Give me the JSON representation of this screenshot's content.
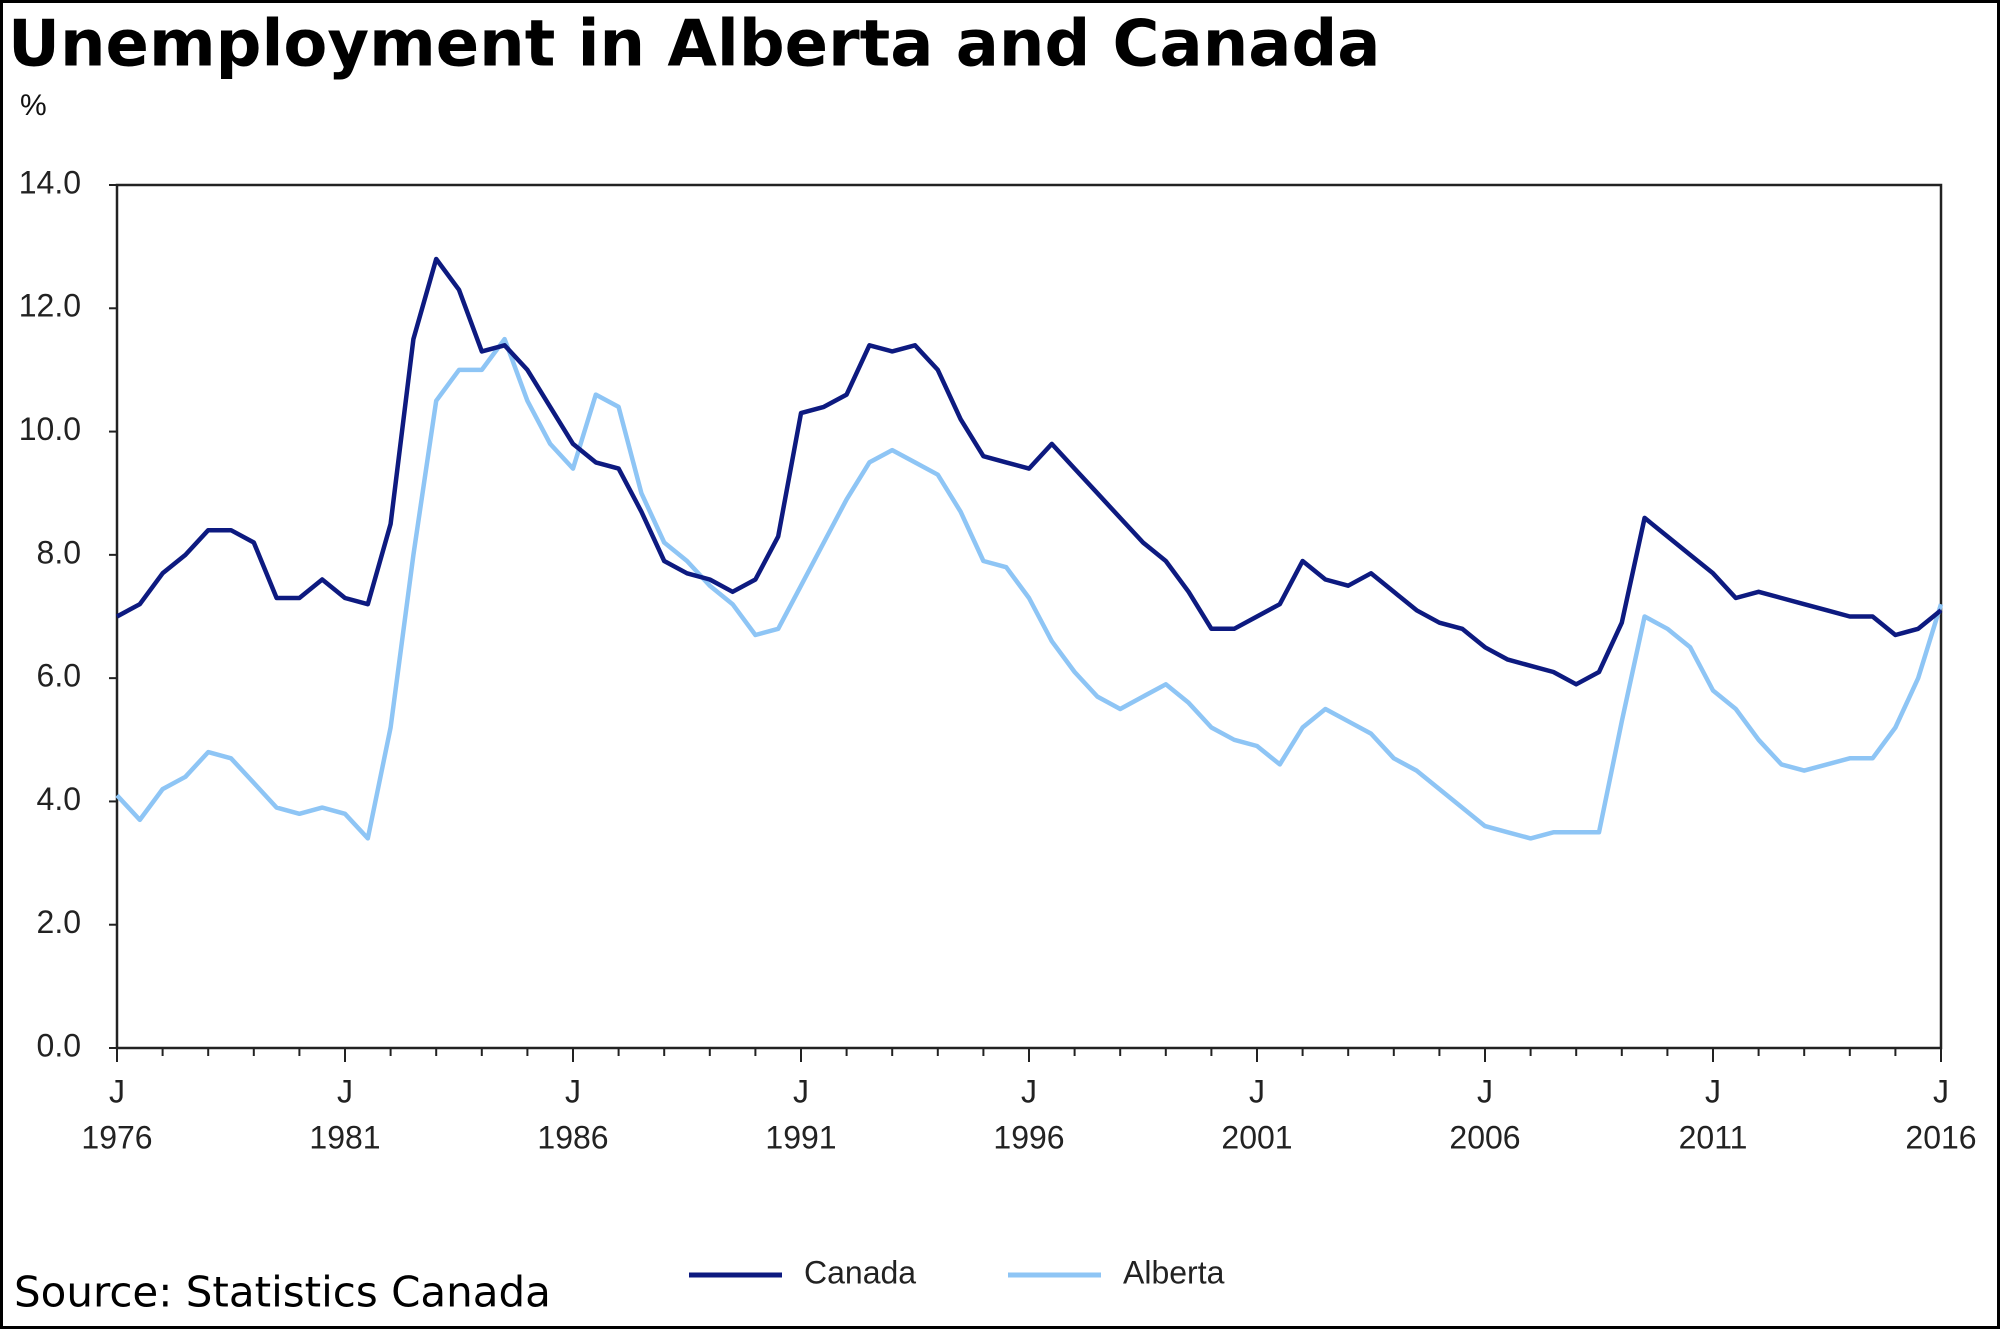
{
  "chart_data": {
    "type": "line",
    "title": "Unemployment in Alberta and Canada",
    "y_label": "%",
    "source": "Source: Statistics Canada",
    "xtick_month": "J",
    "x": [
      1976,
      1976.5,
      1977,
      1977.5,
      1978,
      1978.5,
      1979,
      1979.5,
      1980,
      1980.5,
      1981,
      1981.5,
      1982,
      1982.5,
      1983,
      1983.5,
      1984,
      1984.5,
      1985,
      1985.5,
      1986,
      1986.5,
      1987,
      1987.5,
      1988,
      1988.5,
      1989,
      1989.5,
      1990,
      1990.5,
      1991,
      1991.5,
      1992,
      1992.5,
      1993,
      1993.5,
      1994,
      1994.5,
      1995,
      1995.5,
      1996,
      1996.5,
      1997,
      1997.5,
      1998,
      1998.5,
      1999,
      1999.5,
      2000,
      2000.5,
      2001,
      2001.5,
      2002,
      2002.5,
      2003,
      2003.5,
      2004,
      2004.5,
      2005,
      2005.5,
      2006,
      2006.5,
      2007,
      2007.5,
      2008,
      2008.5,
      2009,
      2009.5,
      2010,
      2010.5,
      2011,
      2011.5,
      2012,
      2012.5,
      2013,
      2013.5,
      2014,
      2014.5,
      2015,
      2015.5,
      2016
    ],
    "series": [
      {
        "name": "Canada",
        "color": "#0d1a80",
        "values": [
          7.0,
          7.2,
          7.7,
          8.0,
          8.4,
          8.4,
          8.2,
          7.3,
          7.3,
          7.6,
          7.3,
          7.2,
          8.5,
          11.5,
          12.8,
          12.3,
          11.3,
          11.4,
          11.0,
          10.4,
          9.8,
          9.5,
          9.4,
          8.7,
          7.9,
          7.7,
          7.6,
          7.4,
          7.6,
          8.3,
          10.3,
          10.4,
          10.6,
          11.4,
          11.3,
          11.4,
          11.0,
          10.2,
          9.6,
          9.5,
          9.4,
          9.8,
          9.4,
          9.0,
          8.6,
          8.2,
          7.9,
          7.4,
          6.8,
          6.8,
          7.0,
          7.2,
          7.9,
          7.6,
          7.5,
          7.7,
          7.4,
          7.1,
          6.9,
          6.8,
          6.5,
          6.3,
          6.2,
          6.1,
          5.9,
          6.1,
          6.9,
          8.6,
          8.3,
          8.0,
          7.7,
          7.3,
          7.4,
          7.3,
          7.2,
          7.1,
          7.0,
          7.0,
          6.7,
          6.8,
          7.1
        ]
      },
      {
        "name": "Alberta",
        "color": "#8ec5f5",
        "values": [
          4.1,
          3.7,
          4.2,
          4.4,
          4.8,
          4.7,
          4.3,
          3.9,
          3.8,
          3.9,
          3.8,
          3.4,
          5.2,
          8.0,
          10.5,
          11.0,
          11.0,
          11.5,
          10.5,
          9.8,
          9.4,
          10.6,
          10.4,
          9.0,
          8.2,
          7.9,
          7.5,
          7.2,
          6.7,
          6.8,
          7.5,
          8.2,
          8.9,
          9.5,
          9.7,
          9.5,
          9.3,
          8.7,
          7.9,
          7.8,
          7.3,
          6.6,
          6.1,
          5.7,
          5.5,
          5.7,
          5.9,
          5.6,
          5.2,
          5.0,
          4.9,
          4.6,
          5.2,
          5.5,
          5.3,
          5.1,
          4.7,
          4.5,
          4.2,
          3.9,
          3.6,
          3.5,
          3.4,
          3.5,
          3.5,
          3.5,
          5.3,
          7.0,
          6.8,
          6.5,
          5.8,
          5.5,
          5.0,
          4.6,
          4.5,
          4.6,
          4.7,
          4.7,
          5.2,
          6.0,
          7.2
        ]
      }
    ],
    "xlim": [
      1976,
      2016
    ],
    "xticks": [
      1976,
      1981,
      1986,
      1991,
      1996,
      2001,
      2006,
      2011,
      2016
    ],
    "xminor": [
      1976,
      1977,
      1978,
      1979,
      1980,
      1981,
      1982,
      1983,
      1984,
      1985,
      1986,
      1987,
      1988,
      1989,
      1990,
      1991,
      1992,
      1993,
      1994,
      1995,
      1996,
      1997,
      1998,
      1999,
      2000,
      2001,
      2002,
      2003,
      2004,
      2005,
      2006,
      2007,
      2008,
      2009,
      2010,
      2011,
      2012,
      2013,
      2014,
      2015,
      2016
    ],
    "ylim": [
      0,
      14
    ],
    "yticks": [
      {
        "value": 0,
        "label": "0.0"
      },
      {
        "value": 2,
        "label": "2.0"
      },
      {
        "value": 4,
        "label": "4.0"
      },
      {
        "value": 6,
        "label": "6.0"
      },
      {
        "value": 8,
        "label": "8.0"
      },
      {
        "value": 10,
        "label": "10.0"
      },
      {
        "value": 12,
        "label": "12.0"
      },
      {
        "value": 14,
        "label": "14.0"
      }
    ],
    "legend": "bottom"
  }
}
